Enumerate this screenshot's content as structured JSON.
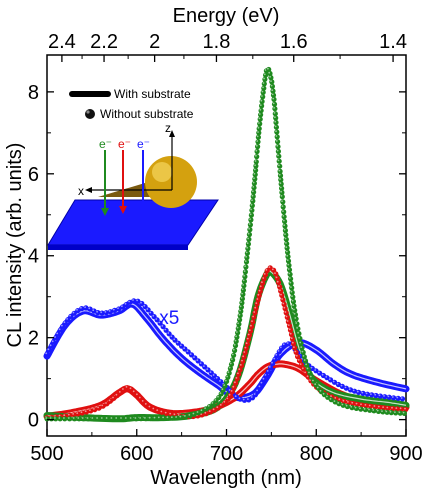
{
  "chart_data": {
    "type": "line",
    "xlabel": "Wavelength (nm)",
    "ylabel": "CL intensity (arb. units)",
    "x2label": "Energy (eV)",
    "xlim": [
      500,
      900
    ],
    "ylim": [
      -0.4,
      8.9
    ],
    "xticks": [
      500,
      600,
      700,
      800,
      900
    ],
    "yticks": [
      0,
      2,
      4,
      6,
      8
    ],
    "energy_ticks": [
      {
        "label": "2.4",
        "ev": 2.4
      },
      {
        "label": "2.2",
        "ev": 2.2
      },
      {
        "label": "2",
        "ev": 2.0
      },
      {
        "label": "1.8",
        "ev": 1.8
      },
      {
        "label": "1.6",
        "ev": 1.6
      },
      {
        "label": "1.4",
        "ev": 1.4
      }
    ],
    "legend": {
      "position": "top-left",
      "entries": [
        {
          "label": "With substrate",
          "style": "thick-line"
        },
        {
          "label": "Without substrate",
          "style": "dots"
        }
      ]
    },
    "annotation": {
      "text": "x5",
      "x": 625,
      "y": 2.5,
      "color": "#1a1aff"
    },
    "inset": {
      "electron_labels": [
        "e⁻",
        "e⁻",
        "e⁻"
      ],
      "axis_labels": {
        "x": "x",
        "z": "z"
      },
      "electron_colors": [
        "#1f8a1f",
        "#e01010",
        "#1a1aff"
      ]
    },
    "series": [
      {
        "color": "#1a1aff",
        "style": "thick-line",
        "scale": 5,
        "x": [
          500,
          520,
          540,
          560,
          580,
          595,
          610,
          630,
          650,
          670,
          690,
          710,
          730,
          745,
          760,
          780,
          800,
          820,
          840,
          870,
          900
        ],
        "y": [
          1.55,
          2.3,
          2.65,
          2.55,
          2.65,
          2.82,
          2.5,
          1.95,
          1.5,
          1.15,
          0.85,
          0.55,
          0.62,
          1.05,
          1.6,
          1.88,
          1.7,
          1.35,
          1.1,
          0.9,
          0.75
        ]
      },
      {
        "color": "#e01010",
        "style": "thick-line",
        "x": [
          500,
          530,
          560,
          580,
          590,
          600,
          615,
          640,
          670,
          690,
          710,
          725,
          735,
          745,
          755,
          765,
          780,
          800,
          830,
          860,
          900
        ],
        "y": [
          0.08,
          0.18,
          0.35,
          0.65,
          0.75,
          0.6,
          0.3,
          0.15,
          0.2,
          0.32,
          0.55,
          0.85,
          1.1,
          1.28,
          1.35,
          1.35,
          1.25,
          0.95,
          0.6,
          0.42,
          0.3
        ]
      },
      {
        "color": "#1f8a1f",
        "style": "thick-line",
        "x": [
          500,
          540,
          580,
          600,
          630,
          660,
          690,
          710,
          725,
          735,
          745,
          750,
          760,
          770,
          780,
          790,
          800,
          820,
          850,
          880,
          900
        ],
        "y": [
          0.1,
          0.05,
          0.02,
          0.05,
          0.05,
          0.1,
          0.3,
          0.9,
          2.0,
          3.0,
          3.55,
          3.6,
          3.3,
          2.6,
          1.8,
          1.2,
          0.9,
          0.65,
          0.5,
          0.42,
          0.35
        ]
      },
      {
        "color": "#1a1aff",
        "style": "dots",
        "scale": 5,
        "x": [
          500,
          520,
          540,
          560,
          580,
          600,
          620,
          640,
          660,
          680,
          700,
          715,
          730,
          745,
          760,
          768,
          775,
          790,
          810,
          830,
          850,
          880,
          900
        ],
        "y": [
          1.6,
          2.35,
          2.72,
          2.6,
          2.7,
          2.9,
          2.5,
          2.0,
          1.6,
          1.2,
          0.8,
          0.5,
          0.55,
          1.1,
          1.7,
          1.85,
          1.75,
          1.35,
          1.05,
          0.8,
          0.65,
          0.55,
          0.5
        ]
      },
      {
        "color": "#e01010",
        "style": "dots",
        "x": [
          500,
          530,
          560,
          580,
          590,
          600,
          615,
          640,
          670,
          700,
          715,
          725,
          735,
          742,
          748,
          755,
          762,
          770,
          780,
          800,
          830,
          870,
          900
        ],
        "y": [
          0.05,
          0.12,
          0.3,
          0.62,
          0.78,
          0.62,
          0.3,
          0.12,
          0.1,
          0.45,
          1.2,
          2.0,
          2.9,
          3.45,
          3.7,
          3.55,
          3.0,
          2.3,
          1.5,
          0.8,
          0.45,
          0.3,
          0.25
        ]
      },
      {
        "color": "#1f8a1f",
        "style": "dots",
        "x": [
          500,
          540,
          580,
          620,
          660,
          690,
          705,
          715,
          722,
          730,
          736,
          741,
          745,
          749,
          753,
          758,
          764,
          770,
          778,
          790,
          805,
          830,
          870,
          900
        ],
        "y": [
          0.02,
          0.02,
          0.02,
          0.03,
          0.1,
          0.5,
          1.3,
          2.5,
          3.8,
          5.5,
          7.0,
          8.0,
          8.55,
          8.4,
          7.8,
          6.5,
          5.0,
          3.7,
          2.4,
          1.3,
          0.7,
          0.35,
          0.2,
          0.15
        ]
      }
    ]
  }
}
